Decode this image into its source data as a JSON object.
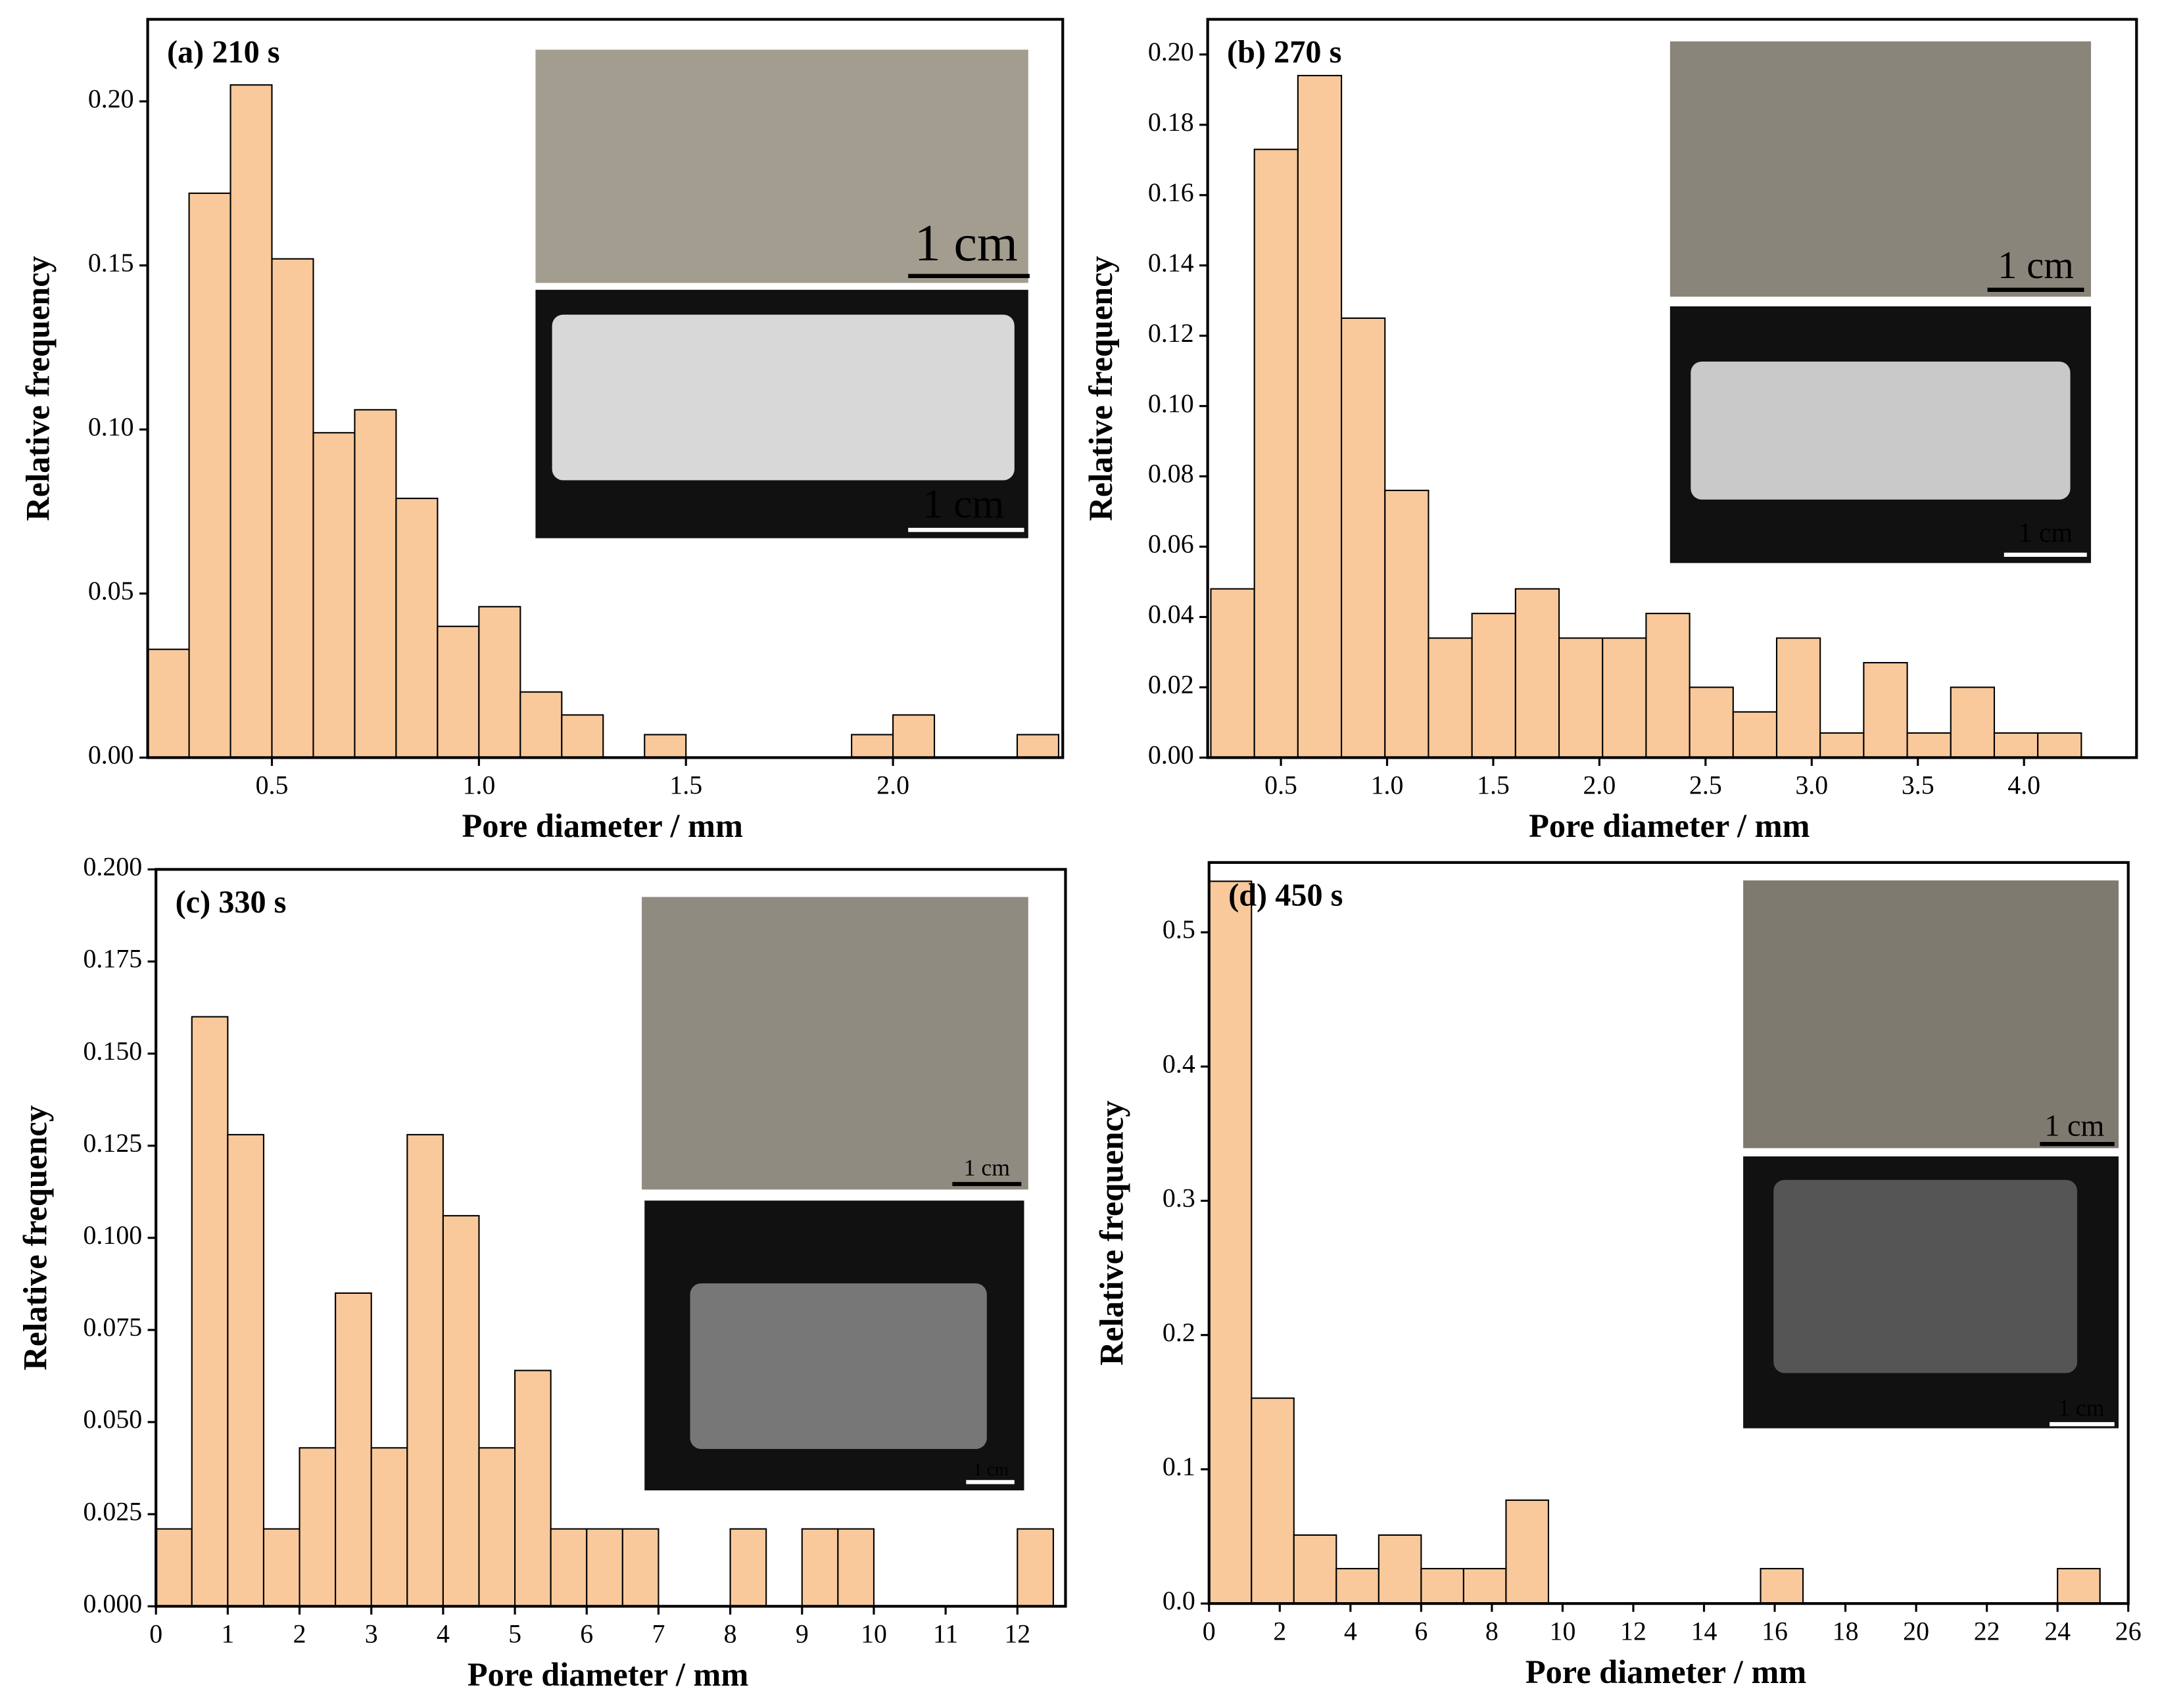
{
  "chart_data": [
    {
      "type": "histogram",
      "title": "(a) 210 s",
      "xlabel": "Pore diameter / mm",
      "ylabel": "Relative frequency",
      "color": "#f9c99b",
      "bins": [
        0.2,
        0.3,
        0.4,
        0.5,
        0.6,
        0.7,
        0.8,
        0.9,
        1.0,
        1.1,
        1.2,
        1.3,
        1.4,
        1.5,
        1.6,
        1.7,
        1.8,
        1.9,
        2.0,
        2.1,
        2.2,
        2.3,
        2.4
      ],
      "values": [
        0.033,
        0.172,
        0.205,
        0.152,
        0.099,
        0.106,
        0.079,
        0.04,
        0.046,
        0.02,
        0.013,
        0,
        0.007,
        0,
        0,
        0,
        0,
        0.007,
        0.013,
        0,
        0,
        0.007
      ],
      "xlim": [
        0.2,
        2.41
      ],
      "ylim": [
        0,
        0.225
      ],
      "xticks": [
        0.5,
        {
          "value": 1,
          "label": "1.0"
        },
        1.5,
        {
          "value": 2,
          "label": "2.0"
        }
      ],
      "yticks": [
        {
          "value": 0,
          "label": "0.00"
        },
        0.05,
        {
          "value": 0.1,
          "label": "0.10"
        },
        0.15,
        {
          "value": 0.2,
          "label": "0.20"
        }
      ],
      "annotations": [
        "1 cm",
        "1 cm"
      ]
    },
    {
      "type": "histogram",
      "title": "(b) 270 s",
      "xlabel": "Pore diameter / mm",
      "ylabel": "Relative frequency",
      "color": "#f9c99b",
      "bins": [
        0.17,
        0.375,
        0.58,
        0.785,
        0.99,
        1.195,
        1.4,
        1.605,
        1.81,
        2.015,
        2.22,
        2.425,
        2.63,
        2.835,
        3.04,
        3.245,
        3.45,
        3.655,
        3.86,
        4.065,
        4.27
      ],
      "values": [
        0.048,
        0.173,
        0.194,
        0.125,
        0.076,
        0.034,
        0.041,
        0.048,
        0.034,
        0.034,
        0.041,
        0.02,
        0.013,
        0.034,
        0.007,
        0.027,
        0.007,
        0.02,
        0.007,
        0.007
      ],
      "xlim": [
        0.155,
        4.53
      ],
      "ylim": [
        0,
        0.21
      ],
      "xticks": [
        0.5,
        {
          "value": 1,
          "label": "1.0"
        },
        1.5,
        {
          "value": 2,
          "label": "2.0"
        },
        2.5,
        {
          "value": 3,
          "label": "3.0"
        },
        3.5,
        {
          "value": 4,
          "label": "4.0"
        }
      ],
      "yticks": [
        {
          "value": 0,
          "label": "0.00"
        },
        0.02,
        0.04,
        0.06,
        0.08,
        {
          "value": 0.1,
          "label": "0.10"
        },
        0.12,
        0.14,
        0.16,
        0.18,
        {
          "value": 0.2,
          "label": "0.20"
        }
      ],
      "annotations": [
        "1 cm",
        "1 cm"
      ]
    },
    {
      "type": "histogram",
      "title": "(c) 330 s",
      "xlabel": "Pore diameter / mm",
      "ylabel": "Relative frequency",
      "color": "#f9c99b",
      "bins": [
        0,
        0.5,
        1,
        1.5,
        2,
        2.5,
        3,
        3.5,
        4,
        4.5,
        5,
        5.5,
        6,
        6.5,
        7,
        7.5,
        8,
        8.5,
        9,
        9.5,
        10,
        10.5,
        11,
        11.5,
        12,
        12.5
      ],
      "values": [
        0.021,
        0.16,
        0.128,
        0.021,
        0.043,
        0.085,
        0.043,
        0.128,
        0.106,
        0.043,
        0.064,
        0.021,
        0.021,
        0.021,
        0,
        0,
        0.021,
        0,
        0.021,
        0.021,
        0,
        0,
        0,
        0,
        0.021
      ],
      "xlim": [
        0,
        12.67
      ],
      "ylim": [
        0,
        0.2
      ],
      "xticks": [
        0,
        1,
        2,
        3,
        4,
        5,
        6,
        7,
        8,
        9,
        10,
        11,
        12
      ],
      "yticks": [
        {
          "value": 0,
          "label": "0.000"
        },
        0.025,
        {
          "value": 0.05,
          "label": "0.050"
        },
        0.075,
        {
          "value": 0.1,
          "label": "0.100"
        },
        0.125,
        {
          "value": 0.15,
          "label": "0.150"
        },
        0.175,
        {
          "value": 0.2,
          "label": "0.200"
        }
      ],
      "annotations": [
        "1 cm",
        "1 cm"
      ]
    },
    {
      "type": "histogram",
      "title": "(d) 450 s",
      "xlabel": "Pore diameter / mm",
      "ylabel": "Relative frequency",
      "color": "#f9c99b",
      "bins": [
        0,
        1.2,
        2.4,
        3.6,
        4.8,
        6,
        7.2,
        8.4,
        9.6,
        10.8,
        12,
        13.2,
        14.4,
        15.6,
        16.8,
        18,
        19.2,
        20.4,
        21.6,
        22.8,
        24,
        25.2
      ],
      "values": [
        0.538,
        0.153,
        0.051,
        0.026,
        0.051,
        0.026,
        0.026,
        0.077,
        0,
        0,
        0,
        0,
        0,
        0.026,
        0,
        0,
        0,
        0,
        0,
        0,
        0.026
      ],
      "xlim": [
        0,
        26
      ],
      "ylim": [
        0,
        0.552
      ],
      "xticks": [
        0,
        2,
        4,
        6,
        8,
        10,
        12,
        14,
        16,
        18,
        20,
        22,
        24,
        26
      ],
      "yticks": [
        {
          "value": 0,
          "label": "0.0"
        },
        0.1,
        0.2,
        0.3,
        0.4,
        0.5
      ],
      "annotations": [
        "1 cm",
        "1 cm"
      ]
    }
  ]
}
